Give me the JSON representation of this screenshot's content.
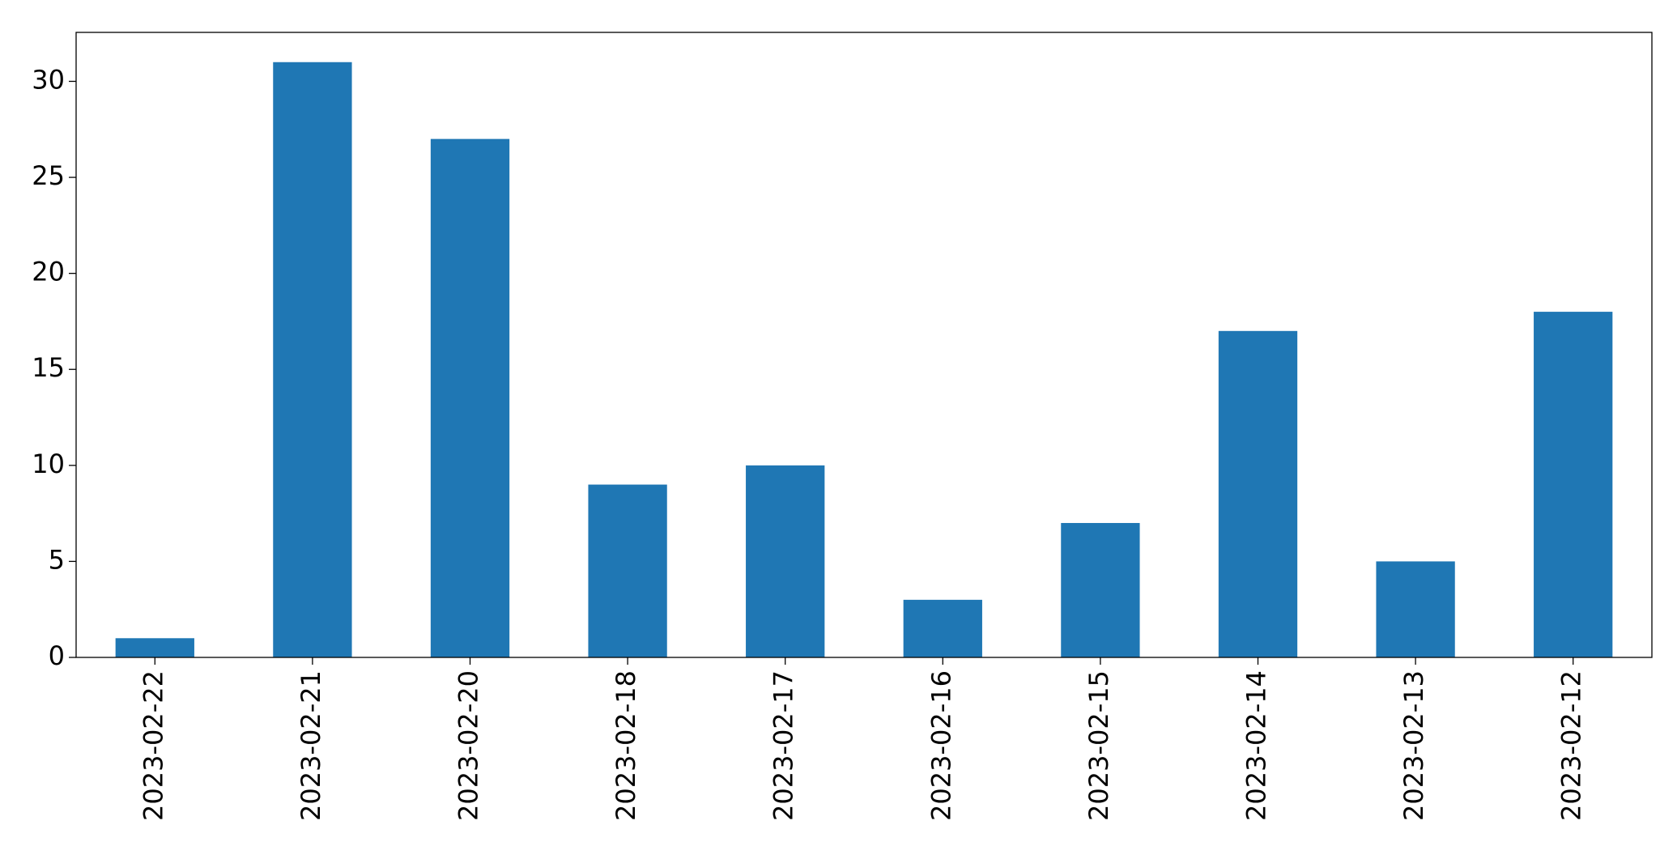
{
  "chart_data": {
    "type": "bar",
    "categories": [
      "2023-02-22",
      "2023-02-21",
      "2023-02-20",
      "2023-02-18",
      "2023-02-17",
      "2023-02-16",
      "2023-02-15",
      "2023-02-14",
      "2023-02-13",
      "2023-02-12"
    ],
    "values": [
      1,
      31,
      27,
      9,
      10,
      3,
      7,
      17,
      5,
      18
    ],
    "color": "#1f77b4",
    "ylim": [
      0,
      32.55
    ],
    "yticks": [
      0,
      5,
      10,
      15,
      20,
      25,
      30
    ],
    "grid": false
  }
}
